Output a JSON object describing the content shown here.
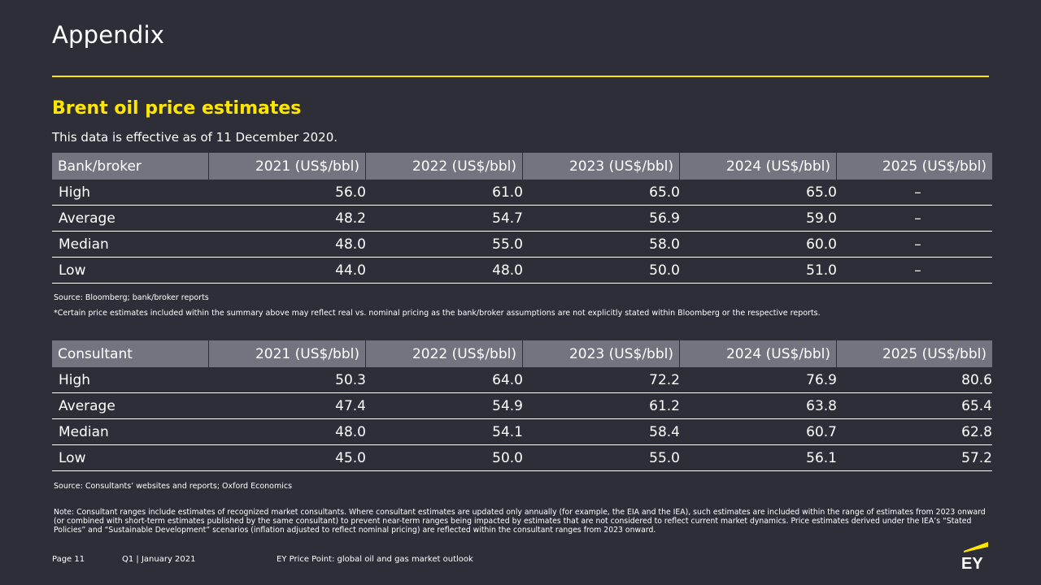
{
  "page": {
    "title": "Appendix",
    "section_title": "Brent oil price estimates",
    "effective_text": "This data is effective as of 11 December 2020."
  },
  "table_bank": {
    "headers": [
      "Bank/broker",
      "2021 (US$/bbl)",
      "2022 (US$/bbl)",
      "2023 (US$/bbl)",
      "2024 (US$/bbl)",
      "2025 (US$/bbl)"
    ],
    "rows": [
      [
        "High",
        "56.0",
        "61.0",
        "65.0",
        "65.0",
        "–"
      ],
      [
        "Average",
        "48.2",
        "54.7",
        "56.9",
        "59.0",
        "–"
      ],
      [
        "Median",
        "48.0",
        "55.0",
        "58.0",
        "60.0",
        "–"
      ],
      [
        "Low",
        "44.0",
        "48.0",
        "50.0",
        "51.0",
        "–"
      ]
    ],
    "source": "Source: Bloomberg; bank/broker reports",
    "footnote": "*Certain price estimates included within the summary above may reflect real vs. nominal pricing as the bank/broker assumptions are not explicitly stated within Bloomberg or the respective reports."
  },
  "table_consultant": {
    "headers": [
      "Consultant",
      "2021 (US$/bbl)",
      "2022 (US$/bbl)",
      "2023 (US$/bbl)",
      "2024 (US$/bbl)",
      "2025 (US$/bbl)"
    ],
    "rows": [
      [
        "High",
        "50.3",
        "64.0",
        "72.2",
        "76.9",
        "80.6"
      ],
      [
        "Average",
        "47.4",
        "54.9",
        "61.2",
        "63.8",
        "65.4"
      ],
      [
        "Median",
        "48.0",
        "54.1",
        "58.4",
        "60.7",
        "62.8"
      ],
      [
        "Low",
        "45.0",
        "50.0",
        "55.0",
        "56.1",
        "57.2"
      ]
    ],
    "source": "Source: Consultants’ websites and reports; Oxford Economics",
    "note": "Note: Consultant ranges include estimates of recognized market consultants. Where consultant estimates are updated only annually (for example, the EIA and the IEA), such estimates are included within the range of estimates from 2023 onward (or combined with short-term estimates published by the same consultant) to prevent near-term ranges being impacted by estimates that are not considered to reflect current market dynamics. Price estimates derived under the IEA’s “Stated Policies” and “Sustainable Development” scenarios (inflation adjusted to reflect nominal pricing) are reflected within the consultant ranges from 2023 onward."
  },
  "footer": {
    "page": "Page 11",
    "quarter": "Q1 | January 2021",
    "publication": "EY Price Point: global oil and gas market outlook"
  },
  "logo": {
    "text": "EY",
    "icon": "ey-logo-icon"
  },
  "colors": {
    "background": "#2e2e38",
    "accent": "#ffe600",
    "header_fill": "#747480"
  }
}
